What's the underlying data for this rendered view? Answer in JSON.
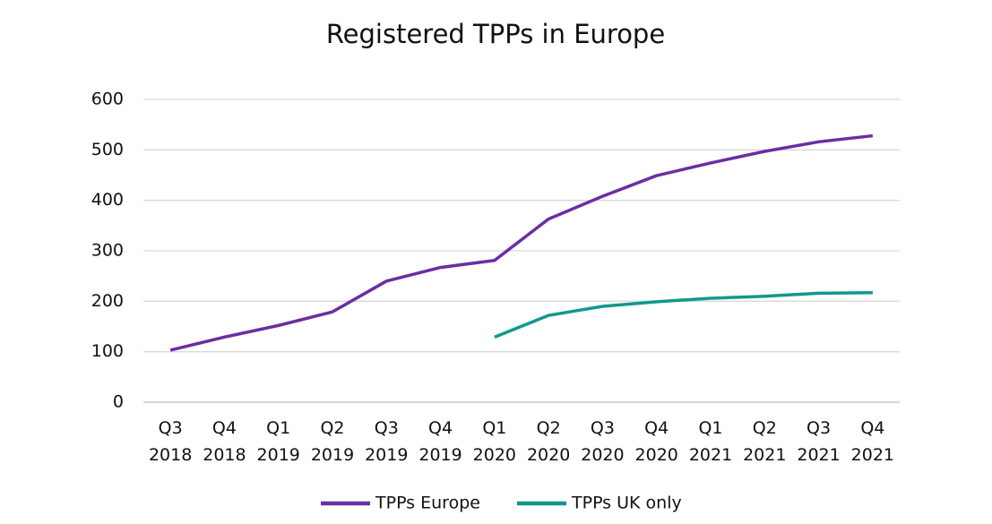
{
  "chart_data": {
    "type": "line",
    "title": "Registered TPPs in Europe",
    "categories": [
      "Q3 2018",
      "Q4 2018",
      "Q1 2019",
      "Q2 2019",
      "Q3 2019",
      "Q4 2019",
      "Q1 2020",
      "Q2 2020",
      "Q3 2020",
      "Q4 2020",
      "Q1 2021",
      "Q2 2021",
      "Q3 2021",
      "Q4 2021"
    ],
    "series": [
      {
        "name": "TPPs Europe",
        "color": "#6a2ea3",
        "values": [
          103,
          129,
          152,
          179,
          240,
          267,
          281,
          363,
          408,
          449,
          474,
          497,
          516,
          528
        ]
      },
      {
        "name": "TPPs UK only",
        "color": "#10998b",
        "values": [
          null,
          null,
          null,
          null,
          null,
          null,
          129,
          172,
          190,
          199,
          206,
          210,
          216,
          217
        ]
      }
    ],
    "ylim": [
      0,
      600
    ],
    "yticks": [
      0,
      100,
      200,
      300,
      400,
      500,
      600
    ],
    "grid": true,
    "legend": "bottom"
  }
}
